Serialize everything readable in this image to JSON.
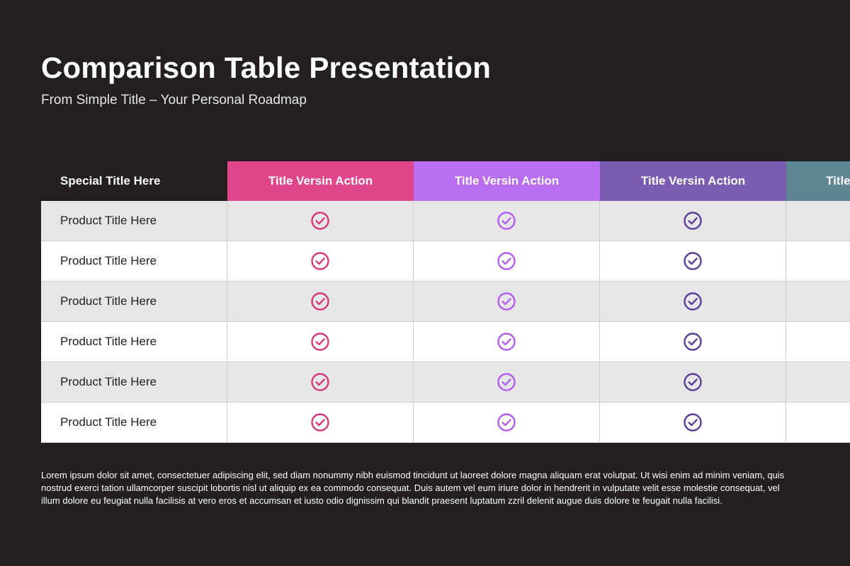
{
  "title": "Comparison Table Presentation",
  "subtitle": "From Simple Title – Your Personal Roadmap",
  "table": {
    "header": [
      {
        "label": "Special Title Here",
        "color": "#231f20"
      },
      {
        "label": "Title Versin Action",
        "color": "#e0468b"
      },
      {
        "label": "Title Versin Action",
        "color": "#b96ef0"
      },
      {
        "label": "Title Versin Action",
        "color": "#7a5cb2"
      },
      {
        "label": "Title",
        "color": "#5e8594"
      }
    ],
    "check_colors": [
      "#d63a7a",
      "#b25ef0",
      "#5a3f96"
    ],
    "check_icon": "check-circle-icon",
    "rows": [
      {
        "label": "Product Title Here"
      },
      {
        "label": "Product Title Here"
      },
      {
        "label": "Product Title Here"
      },
      {
        "label": "Product Title Here"
      },
      {
        "label": "Product Title Here"
      },
      {
        "label": "Product Title Here"
      }
    ]
  },
  "description": "Lorem ipsum dolor sit amet, consectetuer adipiscing elit, sed diam nonummy nibh euismod tincidunt ut laoreet dolore magna aliquam erat volutpat. Ut wisi enim ad minim veniam, quis nostrud exerci tation ullamcorper suscipit lobortis nisl ut aliquip ex ea commodo consequat. Duis autem vel eum iriure dolor in hendrerit in vulputate velit esse molestie consequat, vel illum dolore eu feugiat nulla facilisis at vero eros et accumsan et iusto odio dignissim qui blandit praesent luptatum zzril delenit augue duis dolore te feugait nulla facilisi."
}
